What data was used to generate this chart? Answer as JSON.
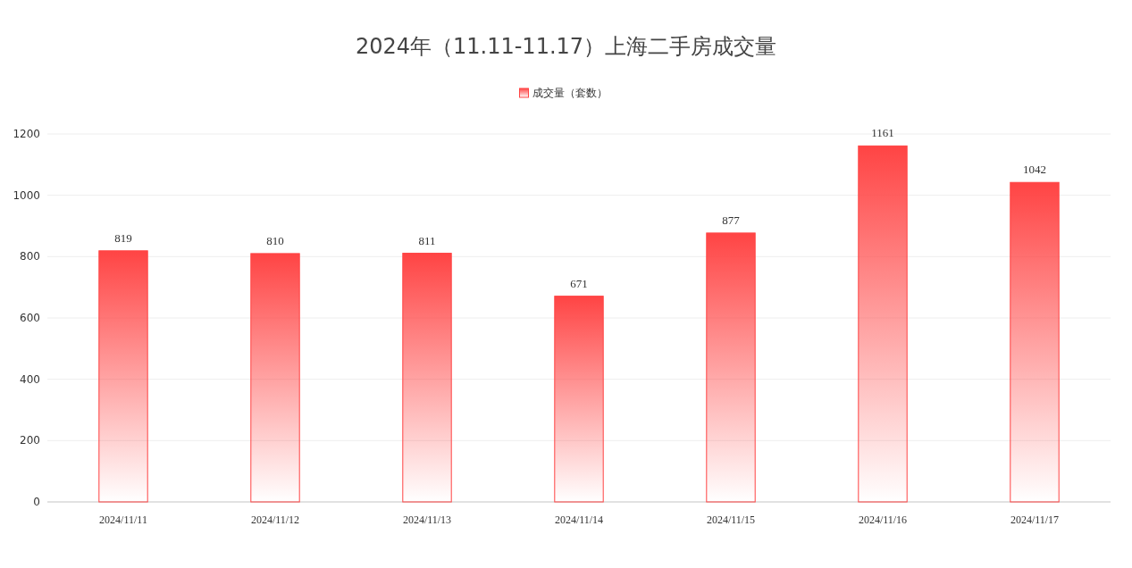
{
  "chart_data": {
    "type": "bar",
    "title": "2024年（11.11-11.17）上海二手房成交量",
    "categories": [
      "2024/11/11",
      "2024/11/12",
      "2024/11/13",
      "2024/11/14",
      "2024/11/15",
      "2024/11/16",
      "2024/11/17"
    ],
    "series": [
      {
        "name": "成交量（套数）",
        "color": "#ff4444",
        "values": [
          819,
          810,
          811,
          671,
          877,
          1161,
          1042
        ]
      }
    ],
    "ylim": [
      0,
      1200
    ],
    "yticks": [
      0,
      200,
      400,
      600,
      800,
      1000,
      1200
    ],
    "grid": "y",
    "legend": "top",
    "data_labels": true
  }
}
